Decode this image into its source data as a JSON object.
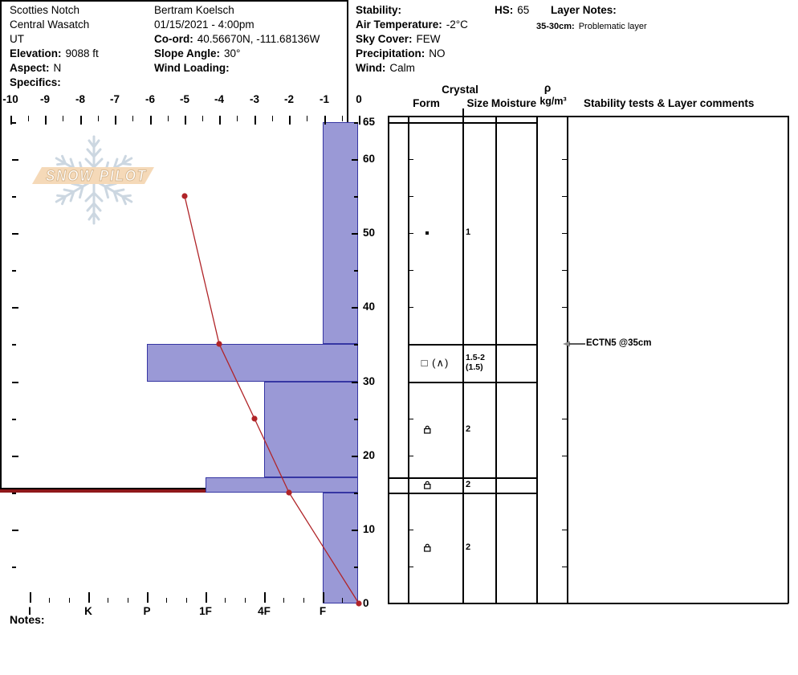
{
  "header": {
    "site": [
      {
        "b": "",
        "t": "Scotties Notch"
      },
      {
        "b": "",
        "t": "Central Wasatch"
      },
      {
        "b": "",
        "t": "UT"
      },
      {
        "b": "Elevation:",
        "t": "9088 ft"
      },
      {
        "b": "Aspect:",
        "t": "N"
      },
      {
        "b": "Specifics:",
        "t": ""
      }
    ],
    "observer": [
      {
        "b": "",
        "t": "Bertram Koelsch"
      },
      {
        "b": "",
        "t": "01/15/2021 - 4:00pm"
      },
      {
        "b": "Co-ord:",
        "t": "40.56670N, -111.68136W"
      },
      {
        "b": "Slope Angle:",
        "t": "30°"
      },
      {
        "b": "Wind Loading:",
        "t": ""
      }
    ],
    "conditions": [
      {
        "b": "Stability:",
        "t": ""
      },
      {
        "b": "Air Temperature:",
        "t": "-2°C"
      },
      {
        "b": "Sky Cover:",
        "t": "FEW"
      },
      {
        "b": "Precipitation:",
        "t": "NO"
      },
      {
        "b": "Wind:",
        "t": "Calm"
      }
    ],
    "hs_label": "HS:",
    "hs_value": "65",
    "layer_notes_title": "Layer Notes:",
    "layer_notes": [
      {
        "b": "35-30cm:",
        "t": "Problematic layer"
      }
    ]
  },
  "logo": {
    "banner_text": "SNOW PILOT",
    "snowflake_icon": "snowflake-icon",
    "banner_color": "#f5d9b8",
    "flake_color": "#ccd7e1",
    "letter_outline_color": "#d8b992"
  },
  "chart_data": {
    "type": "snow-profile",
    "depth_axis": {
      "units": "cm",
      "min": 0,
      "max": 65,
      "labeled_ticks": [
        65,
        60,
        50,
        40,
        30,
        20,
        10,
        0
      ],
      "major_tick_interval": 10,
      "minor_tick_interval": 5
    },
    "temp_axis": {
      "units": "°C",
      "min": -10,
      "max": 0,
      "ticks": [
        -10,
        -9,
        -8,
        -7,
        -6,
        -5,
        -4,
        -3,
        -2,
        -1,
        0
      ]
    },
    "hardness_axis": {
      "categories": [
        "I",
        "K",
        "P",
        "1F",
        "4F",
        "F"
      ]
    },
    "layers": [
      {
        "top_cm": 65,
        "bottom_cm": 35,
        "hardness": "F",
        "form_icon": "dot-grain-icon",
        "form_text": "",
        "size": "1",
        "size_secondary": "",
        "moisture": "",
        "density": "",
        "comment": ""
      },
      {
        "top_cm": 35,
        "bottom_cm": 30,
        "hardness": "P",
        "form_icon": "",
        "form_text": "□ (∧)",
        "size": "1.5-2",
        "size_secondary": "(1.5)",
        "moisture": "",
        "density": "",
        "comment": ""
      },
      {
        "top_cm": 30,
        "bottom_cm": 17,
        "hardness": "4F",
        "form_icon": "padlock-grain-icon",
        "form_text": "",
        "size": "2",
        "size_secondary": "",
        "moisture": "",
        "density": "",
        "comment": ""
      },
      {
        "top_cm": 17,
        "bottom_cm": 15,
        "hardness": "1F",
        "form_icon": "padlock-grain-icon",
        "form_text": "",
        "size": "2",
        "size_secondary": "",
        "moisture": "",
        "density": "",
        "comment": ""
      },
      {
        "top_cm": 15,
        "bottom_cm": 0,
        "hardness": "F",
        "form_icon": "padlock-grain-icon",
        "form_text": "",
        "size": "2",
        "size_secondary": "",
        "moisture": "",
        "density": "",
        "comment": ""
      }
    ],
    "temperature_profile": [
      {
        "depth_cm": 55,
        "temp_c": -5
      },
      {
        "depth_cm": 35,
        "temp_c": -4
      },
      {
        "depth_cm": 25,
        "temp_c": -3
      },
      {
        "depth_cm": 15,
        "temp_c": -2
      },
      {
        "depth_cm": 0,
        "temp_c": 0
      }
    ],
    "problematic_layer": {
      "depth_cm": 35,
      "color": "#8f181a"
    },
    "annotations": [
      {
        "depth_cm": 35,
        "text": "ECTN5 @35cm"
      }
    ],
    "colors": {
      "bar_fill": "#9a99d6",
      "bar_border": "#3636a3",
      "temp_line": "#b02428"
    }
  },
  "table": {
    "headers": {
      "crystal": "Crystal",
      "form": "Form",
      "size": "Size",
      "moisture": "Moisture",
      "rho": "ρ",
      "rho_units": "kg/m³",
      "comments": "Stability tests & Layer comments"
    }
  },
  "notes_label": "Notes:"
}
